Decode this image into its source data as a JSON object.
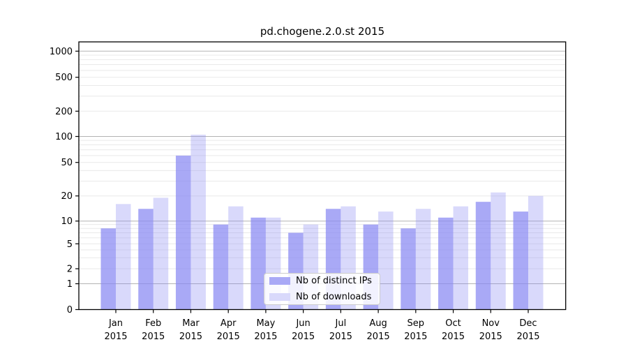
{
  "chart_data": {
    "type": "bar",
    "title": "pd.chogene.2.0.st 2015",
    "categories": [
      "Jan",
      "Feb",
      "Mar",
      "Apr",
      "May",
      "Jun",
      "Jul",
      "Aug",
      "Sep",
      "Oct",
      "Nov",
      "Dec"
    ],
    "category_year": "2015",
    "series": [
      {
        "name": "Nb of distinct IPs",
        "values": [
          8,
          14,
          60,
          9,
          11,
          7,
          14,
          9,
          8,
          11,
          17,
          13
        ]
      },
      {
        "name": "Nb of downloads",
        "values": [
          16,
          19,
          105,
          15,
          11,
          9,
          15,
          13,
          14,
          15,
          22,
          20
        ]
      }
    ],
    "y_ticks": [
      0,
      1,
      2,
      5,
      10,
      20,
      50,
      100,
      200,
      500,
      1000
    ],
    "y_scale": "symlog",
    "ylim": [
      0,
      1150
    ],
    "grid": true,
    "legend_position": "lower center",
    "colors": {
      "bar_base": "#8989f2",
      "ips_alpha": 0.73,
      "downloads_alpha": 0.32,
      "grid_major": "#b3b3b3",
      "grid_minor": "#e9e9e9",
      "axis": "#000000",
      "text": "#000000"
    }
  }
}
